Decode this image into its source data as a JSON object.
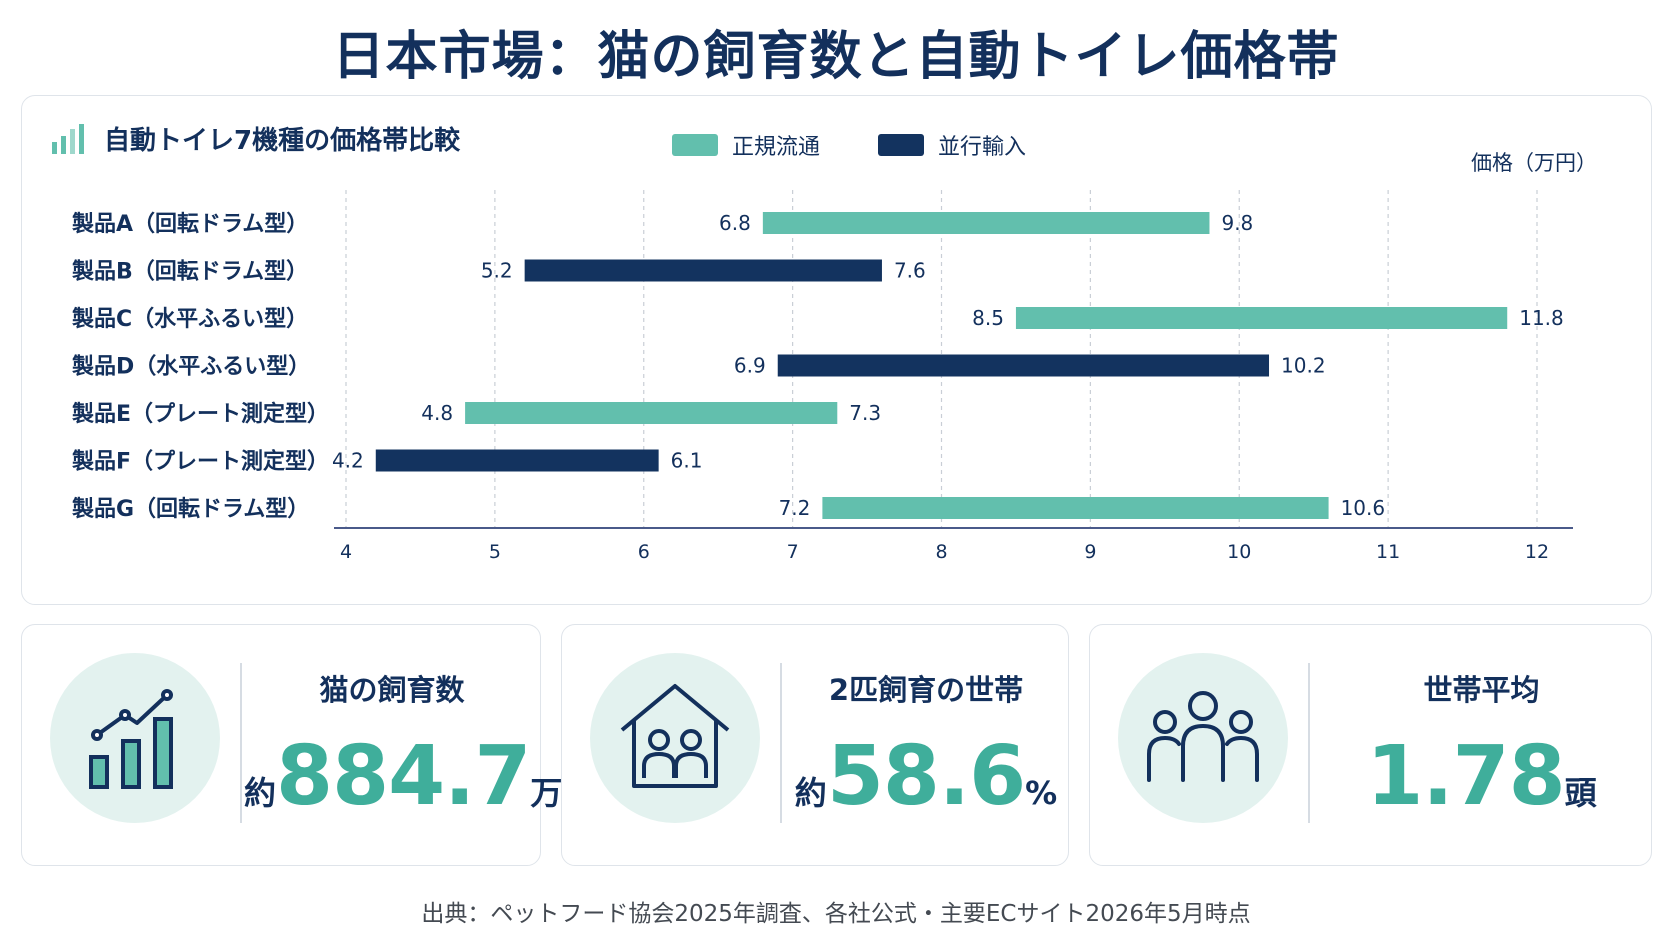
{
  "title": "日本市場：猫の飼育数と自動トイレ価格帯",
  "chart": {
    "heading": "自動トイレ7機種の価格帯比較",
    "legend": [
      {
        "label": "正規流通",
        "color": "#62bfad"
      },
      {
        "label": "並行輸入",
        "color": "#13335f"
      }
    ],
    "axis_unit_label": "価格（万円）"
  },
  "chart_data": {
    "type": "bar",
    "orientation": "horizontal-range",
    "title": "自動トイレ7機種の価格帯比較",
    "xlabel": "価格（万円）",
    "xlim": [
      4,
      12
    ],
    "xticks": [
      4,
      5,
      6,
      7,
      8,
      9,
      10,
      11,
      12
    ],
    "grid": true,
    "legend_position": "top",
    "series": [
      {
        "name": "正規流通",
        "color": "#62bfad"
      },
      {
        "name": "並行輸入",
        "color": "#13335f"
      }
    ],
    "categories": [
      "製品A（回転ドラム型）",
      "製品B（回転ドラム型）",
      "製品C（水平ふるい型）",
      "製品D（水平ふるい型）",
      "製品E（プレート測定型）",
      "製品F（プレート測定型）",
      "製品G（回転ドラム型）"
    ],
    "ranges": [
      {
        "low": 6.8,
        "high": 9.8,
        "series": 0
      },
      {
        "low": 5.2,
        "high": 7.6,
        "series": 1
      },
      {
        "low": 8.5,
        "high": 11.8,
        "series": 0
      },
      {
        "low": 6.9,
        "high": 10.2,
        "series": 1
      },
      {
        "low": 4.8,
        "high": 7.3,
        "series": 0
      },
      {
        "low": 4.2,
        "high": 6.1,
        "series": 1
      },
      {
        "low": 7.2,
        "high": 10.6,
        "series": 0
      }
    ]
  },
  "stats": [
    {
      "icon": "growth-chart-icon",
      "label": "猫の飼育数",
      "prefix": "約",
      "value": "884.7",
      "unit": "万頭"
    },
    {
      "icon": "house-two-people-icon",
      "label": "2匹飼育の世帯",
      "prefix": "約",
      "value": "58.6",
      "unit": "%"
    },
    {
      "icon": "family-group-icon",
      "label": "世帯平均",
      "prefix": "",
      "value": "1.78",
      "unit": "頭"
    }
  ],
  "colors": {
    "accent": "#3fae9b",
    "navy": "#13305c",
    "teal_bar": "#62bfad",
    "navy_bar": "#13335f",
    "icon_bg": "#e3f2ef"
  },
  "source": "出典：ペットフード協会2025年調査、各社公式・主要ECサイト2026年5月時点"
}
